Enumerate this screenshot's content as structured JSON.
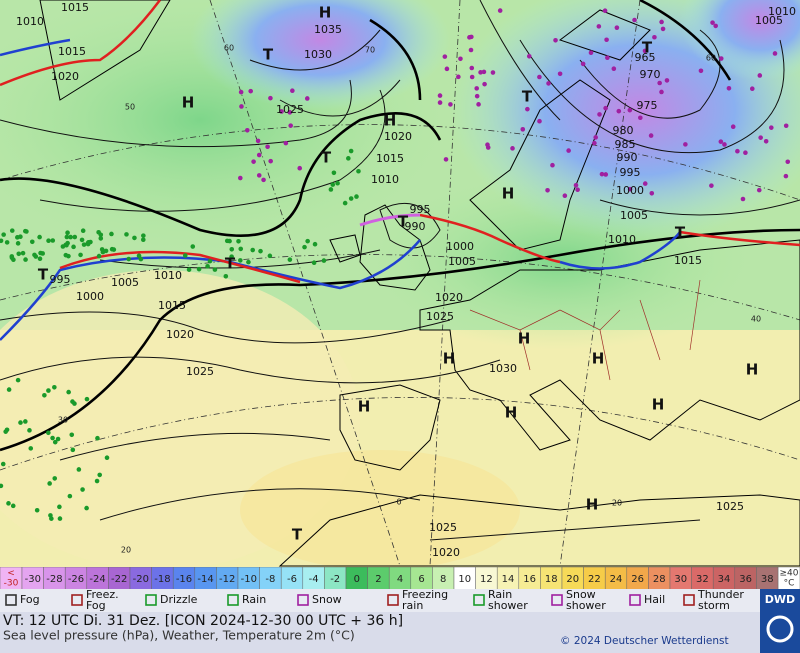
{
  "map": {
    "pressure_labels": [
      "1010",
      "1015",
      "1015",
      "1020",
      "1035",
      "1030",
      "1025",
      "1020",
      "1015",
      "1010",
      "995",
      "990",
      "1000",
      "1005",
      "1010",
      "995",
      "1005",
      "1000",
      "1015",
      "1020",
      "1025",
      "1020",
      "1025",
      "1030",
      "965",
      "970",
      "975",
      "980",
      "985",
      "990",
      "995",
      "1000",
      "1005",
      "1010",
      "1015",
      "1010",
      "1005",
      "1025",
      "1025",
      "1020"
    ],
    "centers": [
      "H",
      "T",
      "H",
      "H",
      "T",
      "T",
      "T",
      "H",
      "T",
      "T",
      "T",
      "T",
      "H",
      "H",
      "H",
      "H",
      "H",
      "H",
      "H",
      "H",
      "T"
    ],
    "temperature_labels": [
      "60",
      "50",
      "70",
      "60",
      "40",
      "30",
      "20",
      "20",
      "0"
    ]
  },
  "scale": {
    "low_sign": "<",
    "low_value": "-30",
    "values": [
      -30,
      -28,
      -26,
      -24,
      -22,
      -20,
      -18,
      -16,
      -14,
      -12,
      -10,
      -8,
      -6,
      -4,
      -2,
      0,
      2,
      4,
      6,
      8,
      10,
      12,
      14,
      16,
      18,
      20,
      22,
      24,
      26,
      28,
      30,
      32,
      34,
      36,
      38
    ],
    "colors": [
      "#e4a4f0",
      "#d894ea",
      "#cc84e2",
      "#bc74da",
      "#a866d2",
      "#8a6ae0",
      "#6c72e8",
      "#5a84ee",
      "#5896f0",
      "#62aaf2",
      "#72c0f6",
      "#84d2f8",
      "#96e2f6",
      "#a8eef0",
      "#8ce6c4",
      "#3cbc5c",
      "#5ccc6c",
      "#80da80",
      "#a6e692",
      "#c8f0b2",
      "#ffffff",
      "#f8f8d4",
      "#f6f2b4",
      "#f6ec94",
      "#f6e474",
      "#f6da58",
      "#f6cc48",
      "#f4bc46",
      "#f2a84a",
      "#ec9060",
      "#e47870",
      "#da6a68",
      "#cc6464",
      "#bc6464",
      "#a87272"
    ],
    "high_sign": "≥40",
    "high_unit": "°C"
  },
  "legend": [
    "Fog",
    "Freez. Fog",
    "Drizzle",
    "Rain",
    "Snow",
    "Freezing rain",
    "Rain shower",
    "Snow shower",
    "Hail",
    "Thunder storm"
  ],
  "footer": {
    "valid_time": "VT: 12 UTC Di.  31 Dez. [ICON 2024-12-30  00 UTC + 36 h]",
    "description": "Sea level pressure (hPa), Weather, Temperature 2m (°C)",
    "copyright": "© 2024 Deutscher Wetterdienst",
    "logo": "DWD"
  }
}
